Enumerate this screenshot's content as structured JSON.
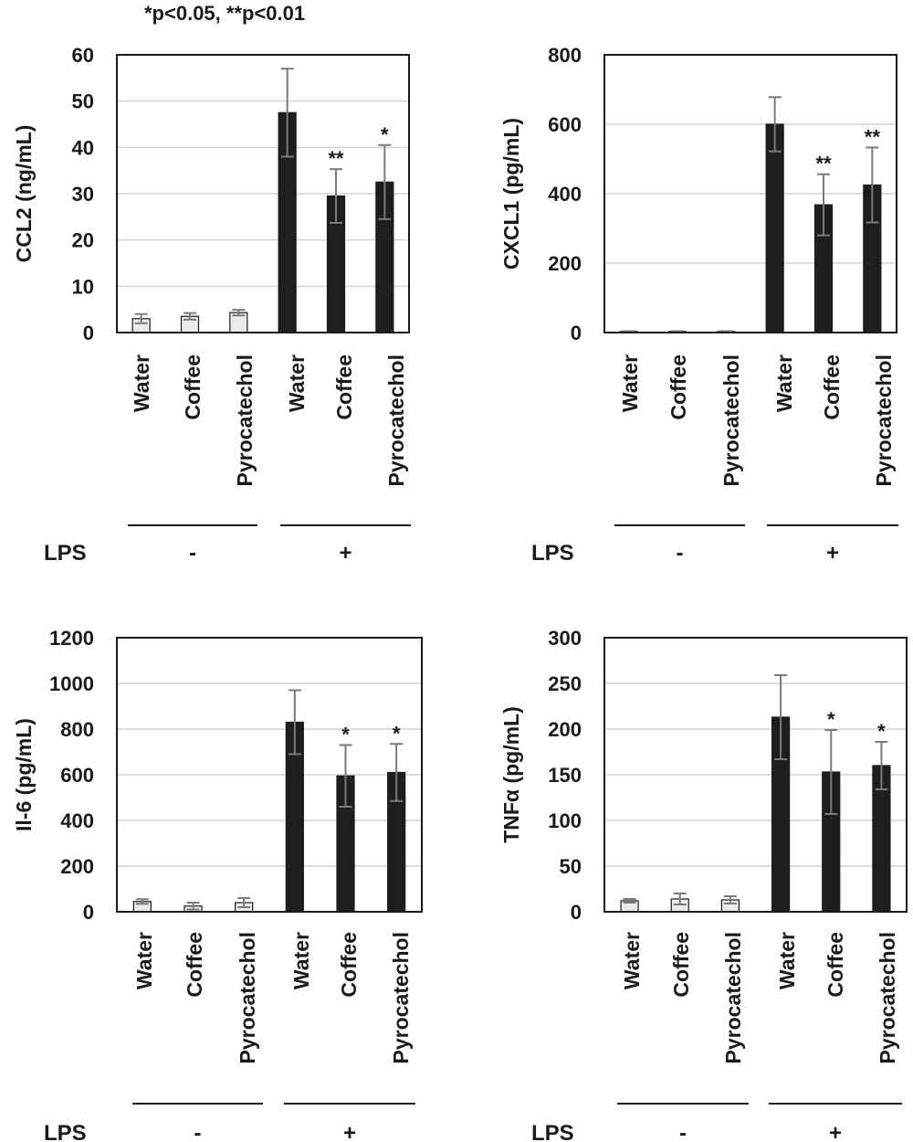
{
  "significance_note": "*p<0.05, **p<0.01",
  "chart_data": [
    {
      "type": "bar",
      "ylabel": "CCL2 (ng/mL)",
      "ylim": [
        0,
        60
      ],
      "yticks": [
        "0",
        "10",
        "20",
        "30",
        "40",
        "50",
        "60"
      ],
      "categories": [
        "Water",
        "Coffee",
        "Pyrocatechol",
        "Water",
        "Coffee",
        "Pyrocatechol"
      ],
      "values": [
        3,
        3.5,
        4.3,
        47.5,
        29.5,
        32.5
      ],
      "errors": [
        1,
        0.7,
        0.6,
        9.5,
        5.8,
        8
      ],
      "significance": [
        "",
        "",
        "",
        "",
        "**",
        "*"
      ],
      "groups": [
        {
          "label": "LPS",
          "value": "-"
        },
        {
          "label": "LPS",
          "value": "+"
        }
      ],
      "group_label": "LPS",
      "grid": true
    },
    {
      "type": "bar",
      "ylabel": "CXCL1 (pg/mL)",
      "ylim": [
        0,
        800
      ],
      "yticks": [
        "0",
        "200",
        "400",
        "600",
        "800"
      ],
      "categories": [
        "Water",
        "Coffee",
        "Pyrocatechol",
        "Water",
        "Coffee",
        "Pyrocatechol"
      ],
      "values": [
        3,
        3,
        3,
        600,
        368,
        425
      ],
      "errors": [
        1,
        1,
        1,
        78,
        88,
        108
      ],
      "significance": [
        "",
        "",
        "",
        "",
        "**",
        "**"
      ],
      "groups": [
        {
          "label": "LPS",
          "value": "-"
        },
        {
          "label": "LPS",
          "value": "+"
        }
      ],
      "group_label": "LPS",
      "grid": true
    },
    {
      "type": "bar",
      "ylabel": "Il-6 (pg/mL)",
      "ylim": [
        0,
        1200
      ],
      "yticks": [
        "0",
        "200",
        "400",
        "600",
        "800",
        "1000",
        "1200"
      ],
      "categories": [
        "Water",
        "Coffee",
        "Pyrocatechol",
        "Water",
        "Coffee",
        "Pyrocatechol"
      ],
      "values": [
        45,
        25,
        40,
        830,
        595,
        610
      ],
      "errors": [
        10,
        15,
        20,
        140,
        135,
        125
      ],
      "significance": [
        "",
        "",
        "",
        "",
        "*",
        "*"
      ],
      "groups": [
        {
          "label": "LPS",
          "value": "-"
        },
        {
          "label": "LPS",
          "value": "+"
        }
      ],
      "group_label": "LPS",
      "grid": true
    },
    {
      "type": "bar",
      "ylabel": "TNFα (pg/mL)",
      "ylim": [
        0,
        300
      ],
      "yticks": [
        "0",
        "50",
        "100",
        "150",
        "200",
        "250",
        "300"
      ],
      "categories": [
        "Water",
        "Coffee",
        "Pyrocatechol",
        "Water",
        "Coffee",
        "Pyrocatechol"
      ],
      "values": [
        12,
        14,
        13,
        213,
        153,
        160
      ],
      "errors": [
        2,
        6,
        4,
        46,
        46,
        26
      ],
      "significance": [
        "",
        "",
        "",
        "",
        "*",
        "*"
      ],
      "groups": [
        {
          "label": "LPS",
          "value": "-"
        },
        {
          "label": "LPS",
          "value": "+"
        }
      ],
      "group_label": "LPS",
      "grid": true
    }
  ],
  "colors": {
    "control_bar": "#ebebeb",
    "lps_bar": "#1e1e1e",
    "error_bar": "#7a7a7a",
    "grid": "#d4d4d4",
    "frame": "#1a1a1a"
  }
}
